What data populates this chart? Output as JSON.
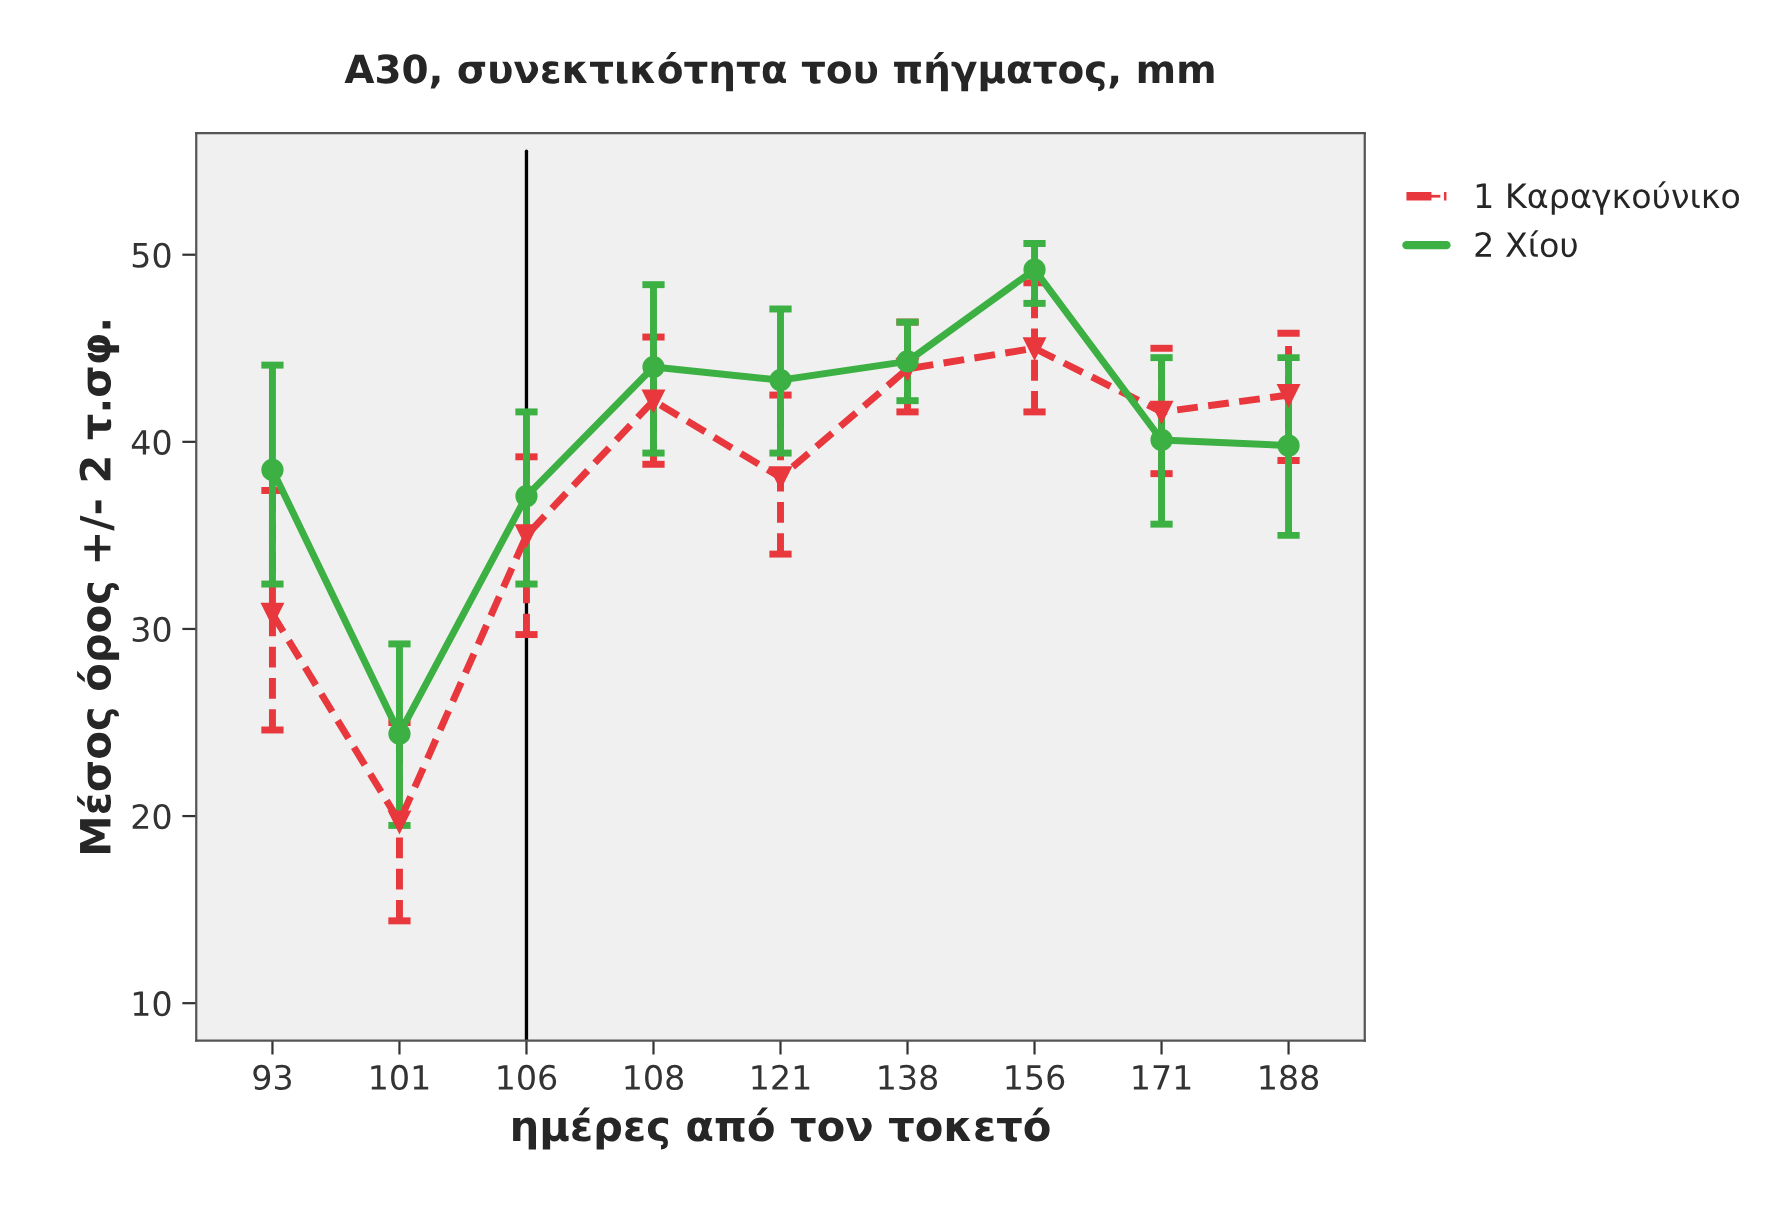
{
  "chart_data": {
    "type": "line",
    "title": "A30, συνεκτικότητα του πήγματος, mm",
    "xlabel": "ημέρες από τον τοκετό",
    "ylabel": "Μέσος όρος +/- 2 τ.σφ.",
    "categories": [
      "93",
      "101",
      "106",
      "108",
      "121",
      "138",
      "156",
      "171",
      "188"
    ],
    "series": [
      {
        "name": "1 Καραγκούνικο",
        "color": "#e8383d",
        "line_style": "dashed",
        "marker": "triangle",
        "values": [
          30.8,
          19.7,
          35.0,
          42.2,
          38.1,
          43.9,
          45.0,
          41.6,
          42.5
        ],
        "errors": [
          [
            24.6,
            37.4
          ],
          [
            14.4,
            25.0
          ],
          [
            29.7,
            39.2
          ],
          [
            38.8,
            45.6
          ],
          [
            34.0,
            42.5
          ],
          [
            41.6,
            46.4
          ],
          [
            41.6,
            48.5
          ],
          [
            38.3,
            45.0
          ],
          [
            39.0,
            45.8
          ]
        ]
      },
      {
        "name": "2 Χίου",
        "color": "#3cb043",
        "line_style": "solid",
        "marker": "circle",
        "values": [
          38.5,
          24.4,
          37.1,
          44.0,
          43.3,
          44.3,
          49.2,
          40.1,
          39.8
        ],
        "errors": [
          [
            32.4,
            44.1
          ],
          [
            19.5,
            29.2
          ],
          [
            32.4,
            41.6
          ],
          [
            39.4,
            48.4
          ],
          [
            39.4,
            47.1
          ],
          [
            42.2,
            46.4
          ],
          [
            47.4,
            50.6
          ],
          [
            35.6,
            44.5
          ],
          [
            35.0,
            44.5
          ]
        ]
      }
    ],
    "ylim": [
      8,
      56.5
    ],
    "yticks": [
      10,
      20,
      30,
      40,
      50
    ],
    "ref_lines": [
      {
        "axis": "x",
        "value": "106",
        "color": "#000000"
      }
    ],
    "grid": false,
    "legend": "top right"
  }
}
